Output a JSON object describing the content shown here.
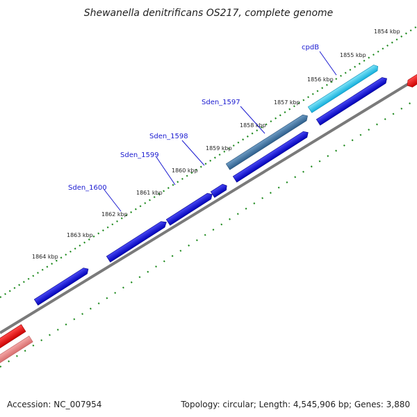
{
  "title": "Shewanella denitrificans OS217, complete genome",
  "ticks": [
    "1854 kbp",
    "1855 kbp",
    "1856 kbp",
    "1857 kbp",
    "1858 kbp",
    "1859 kbp",
    "1860 kbp",
    "1861 kbp",
    "1862 kbp",
    "1863 kbp",
    "1864 kbp"
  ],
  "gene_labels": [
    "cpdB",
    "Sden_1597",
    "Sden_1598",
    "Sden_1599",
    "Sden_1600"
  ],
  "footer": {
    "accession": "Accession: NC_007954",
    "summary": "Topology: circular; Length: 4,545,906 bp; Genes: 3,880"
  },
  "colors": {
    "forward_cds": "#0a0adc",
    "cpdB": "#29c4e8",
    "Sden_1597": "#3f78a8",
    "rna_dark": "#e60000",
    "rna_light": "#e88080",
    "backbone": "#7a7a7a",
    "tick": "#1e8a1e",
    "label": "#1a1ad0"
  }
}
